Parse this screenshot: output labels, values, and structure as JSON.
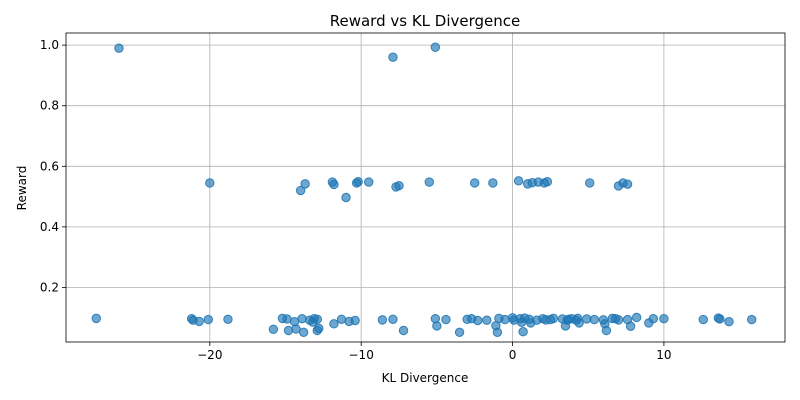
{
  "chart_data": {
    "type": "scatter",
    "title": "Reward vs KL Divergence",
    "xlabel": "KL Divergence",
    "ylabel": "Reward",
    "xlim": [
      -29.5,
      18
    ],
    "ylim": [
      0.02,
      1.04
    ],
    "xticks": [
      -20,
      -10,
      0,
      10
    ],
    "yticks": [
      0.2,
      0.4,
      0.6,
      0.8,
      1.0
    ],
    "xtick_labels": [
      "−20",
      "−10",
      "0",
      "10"
    ],
    "ytick_labels": [
      "0.2",
      "0.4",
      "0.6",
      "0.8",
      "1.0"
    ],
    "grid": true,
    "marker_color": "#1f77b4",
    "marker_alpha": 0.65,
    "points": [
      {
        "x": -26,
        "y": 0.99
      },
      {
        "x": -7.9,
        "y": 0.96
      },
      {
        "x": -5.1,
        "y": 0.993
      },
      {
        "x": -20,
        "y": 0.545
      },
      {
        "x": -14,
        "y": 0.52
      },
      {
        "x": -13.7,
        "y": 0.542
      },
      {
        "x": -11.9,
        "y": 0.548
      },
      {
        "x": -11.8,
        "y": 0.54
      },
      {
        "x": -11.0,
        "y": 0.497
      },
      {
        "x": -10.3,
        "y": 0.545
      },
      {
        "x": -10.2,
        "y": 0.549
      },
      {
        "x": -9.5,
        "y": 0.548
      },
      {
        "x": -7.7,
        "y": 0.532
      },
      {
        "x": -7.5,
        "y": 0.536
      },
      {
        "x": -5.5,
        "y": 0.548
      },
      {
        "x": -2.5,
        "y": 0.545
      },
      {
        "x": -1.3,
        "y": 0.545
      },
      {
        "x": 0.4,
        "y": 0.552
      },
      {
        "x": 1.0,
        "y": 0.542
      },
      {
        "x": 1.3,
        "y": 0.546
      },
      {
        "x": 1.7,
        "y": 0.548
      },
      {
        "x": 2.1,
        "y": 0.545
      },
      {
        "x": 2.3,
        "y": 0.549
      },
      {
        "x": 5.1,
        "y": 0.545
      },
      {
        "x": 7.0,
        "y": 0.535
      },
      {
        "x": 7.3,
        "y": 0.545
      },
      {
        "x": 7.6,
        "y": 0.541
      },
      {
        "x": -27.5,
        "y": 0.098
      },
      {
        "x": -21.2,
        "y": 0.097
      },
      {
        "x": -21.1,
        "y": 0.092
      },
      {
        "x": -20.7,
        "y": 0.088
      },
      {
        "x": -20.1,
        "y": 0.094
      },
      {
        "x": -18.8,
        "y": 0.095
      },
      {
        "x": -15.8,
        "y": 0.062
      },
      {
        "x": -15.2,
        "y": 0.098
      },
      {
        "x": -14.9,
        "y": 0.096
      },
      {
        "x": -14.8,
        "y": 0.058
      },
      {
        "x": -14.4,
        "y": 0.087
      },
      {
        "x": -14.3,
        "y": 0.063
      },
      {
        "x": -13.9,
        "y": 0.097
      },
      {
        "x": -13.8,
        "y": 0.052
      },
      {
        "x": -13.4,
        "y": 0.092
      },
      {
        "x": -13.2,
        "y": 0.086
      },
      {
        "x": -13.1,
        "y": 0.097
      },
      {
        "x": -12.9,
        "y": 0.095
      },
      {
        "x": -12.9,
        "y": 0.058
      },
      {
        "x": -12.8,
        "y": 0.065
      },
      {
        "x": -11.8,
        "y": 0.08
      },
      {
        "x": -11.3,
        "y": 0.095
      },
      {
        "x": -10.8,
        "y": 0.088
      },
      {
        "x": -10.4,
        "y": 0.091
      },
      {
        "x": -8.6,
        "y": 0.093
      },
      {
        "x": -7.9,
        "y": 0.095
      },
      {
        "x": -7.2,
        "y": 0.058
      },
      {
        "x": -5.1,
        "y": 0.097
      },
      {
        "x": -5.0,
        "y": 0.073
      },
      {
        "x": -4.4,
        "y": 0.094
      },
      {
        "x": -3.5,
        "y": 0.052
      },
      {
        "x": -3.0,
        "y": 0.095
      },
      {
        "x": -2.7,
        "y": 0.097
      },
      {
        "x": -2.3,
        "y": 0.091
      },
      {
        "x": -1.7,
        "y": 0.092
      },
      {
        "x": -1.1,
        "y": 0.074
      },
      {
        "x": -1.0,
        "y": 0.052
      },
      {
        "x": -0.9,
        "y": 0.098
      },
      {
        "x": -0.5,
        "y": 0.094
      },
      {
        "x": 0.0,
        "y": 0.1
      },
      {
        "x": 0.1,
        "y": 0.092
      },
      {
        "x": 0.5,
        "y": 0.097
      },
      {
        "x": 0.6,
        "y": 0.085
      },
      {
        "x": 0.7,
        "y": 0.054
      },
      {
        "x": 0.8,
        "y": 0.099
      },
      {
        "x": 1.1,
        "y": 0.095
      },
      {
        "x": 1.2,
        "y": 0.083
      },
      {
        "x": 1.6,
        "y": 0.092
      },
      {
        "x": 2.0,
        "y": 0.097
      },
      {
        "x": 2.2,
        "y": 0.093
      },
      {
        "x": 2.5,
        "y": 0.094
      },
      {
        "x": 2.7,
        "y": 0.098
      },
      {
        "x": 3.3,
        "y": 0.096
      },
      {
        "x": 3.5,
        "y": 0.073
      },
      {
        "x": 3.6,
        "y": 0.092
      },
      {
        "x": 3.7,
        "y": 0.095
      },
      {
        "x": 3.9,
        "y": 0.097
      },
      {
        "x": 4.2,
        "y": 0.092
      },
      {
        "x": 4.3,
        "y": 0.098
      },
      {
        "x": 4.4,
        "y": 0.083
      },
      {
        "x": 4.9,
        "y": 0.096
      },
      {
        "x": 5.4,
        "y": 0.094
      },
      {
        "x": 6.0,
        "y": 0.093
      },
      {
        "x": 6.1,
        "y": 0.08
      },
      {
        "x": 6.2,
        "y": 0.058
      },
      {
        "x": 6.6,
        "y": 0.098
      },
      {
        "x": 6.8,
        "y": 0.097
      },
      {
        "x": 7.0,
        "y": 0.093
      },
      {
        "x": 7.6,
        "y": 0.094
      },
      {
        "x": 7.8,
        "y": 0.072
      },
      {
        "x": 8.2,
        "y": 0.101
      },
      {
        "x": 9.0,
        "y": 0.083
      },
      {
        "x": 9.3,
        "y": 0.097
      },
      {
        "x": 10.0,
        "y": 0.097
      },
      {
        "x": 12.6,
        "y": 0.094
      },
      {
        "x": 13.6,
        "y": 0.099
      },
      {
        "x": 13.7,
        "y": 0.096
      },
      {
        "x": 14.3,
        "y": 0.087
      },
      {
        "x": 15.8,
        "y": 0.094
      }
    ]
  }
}
